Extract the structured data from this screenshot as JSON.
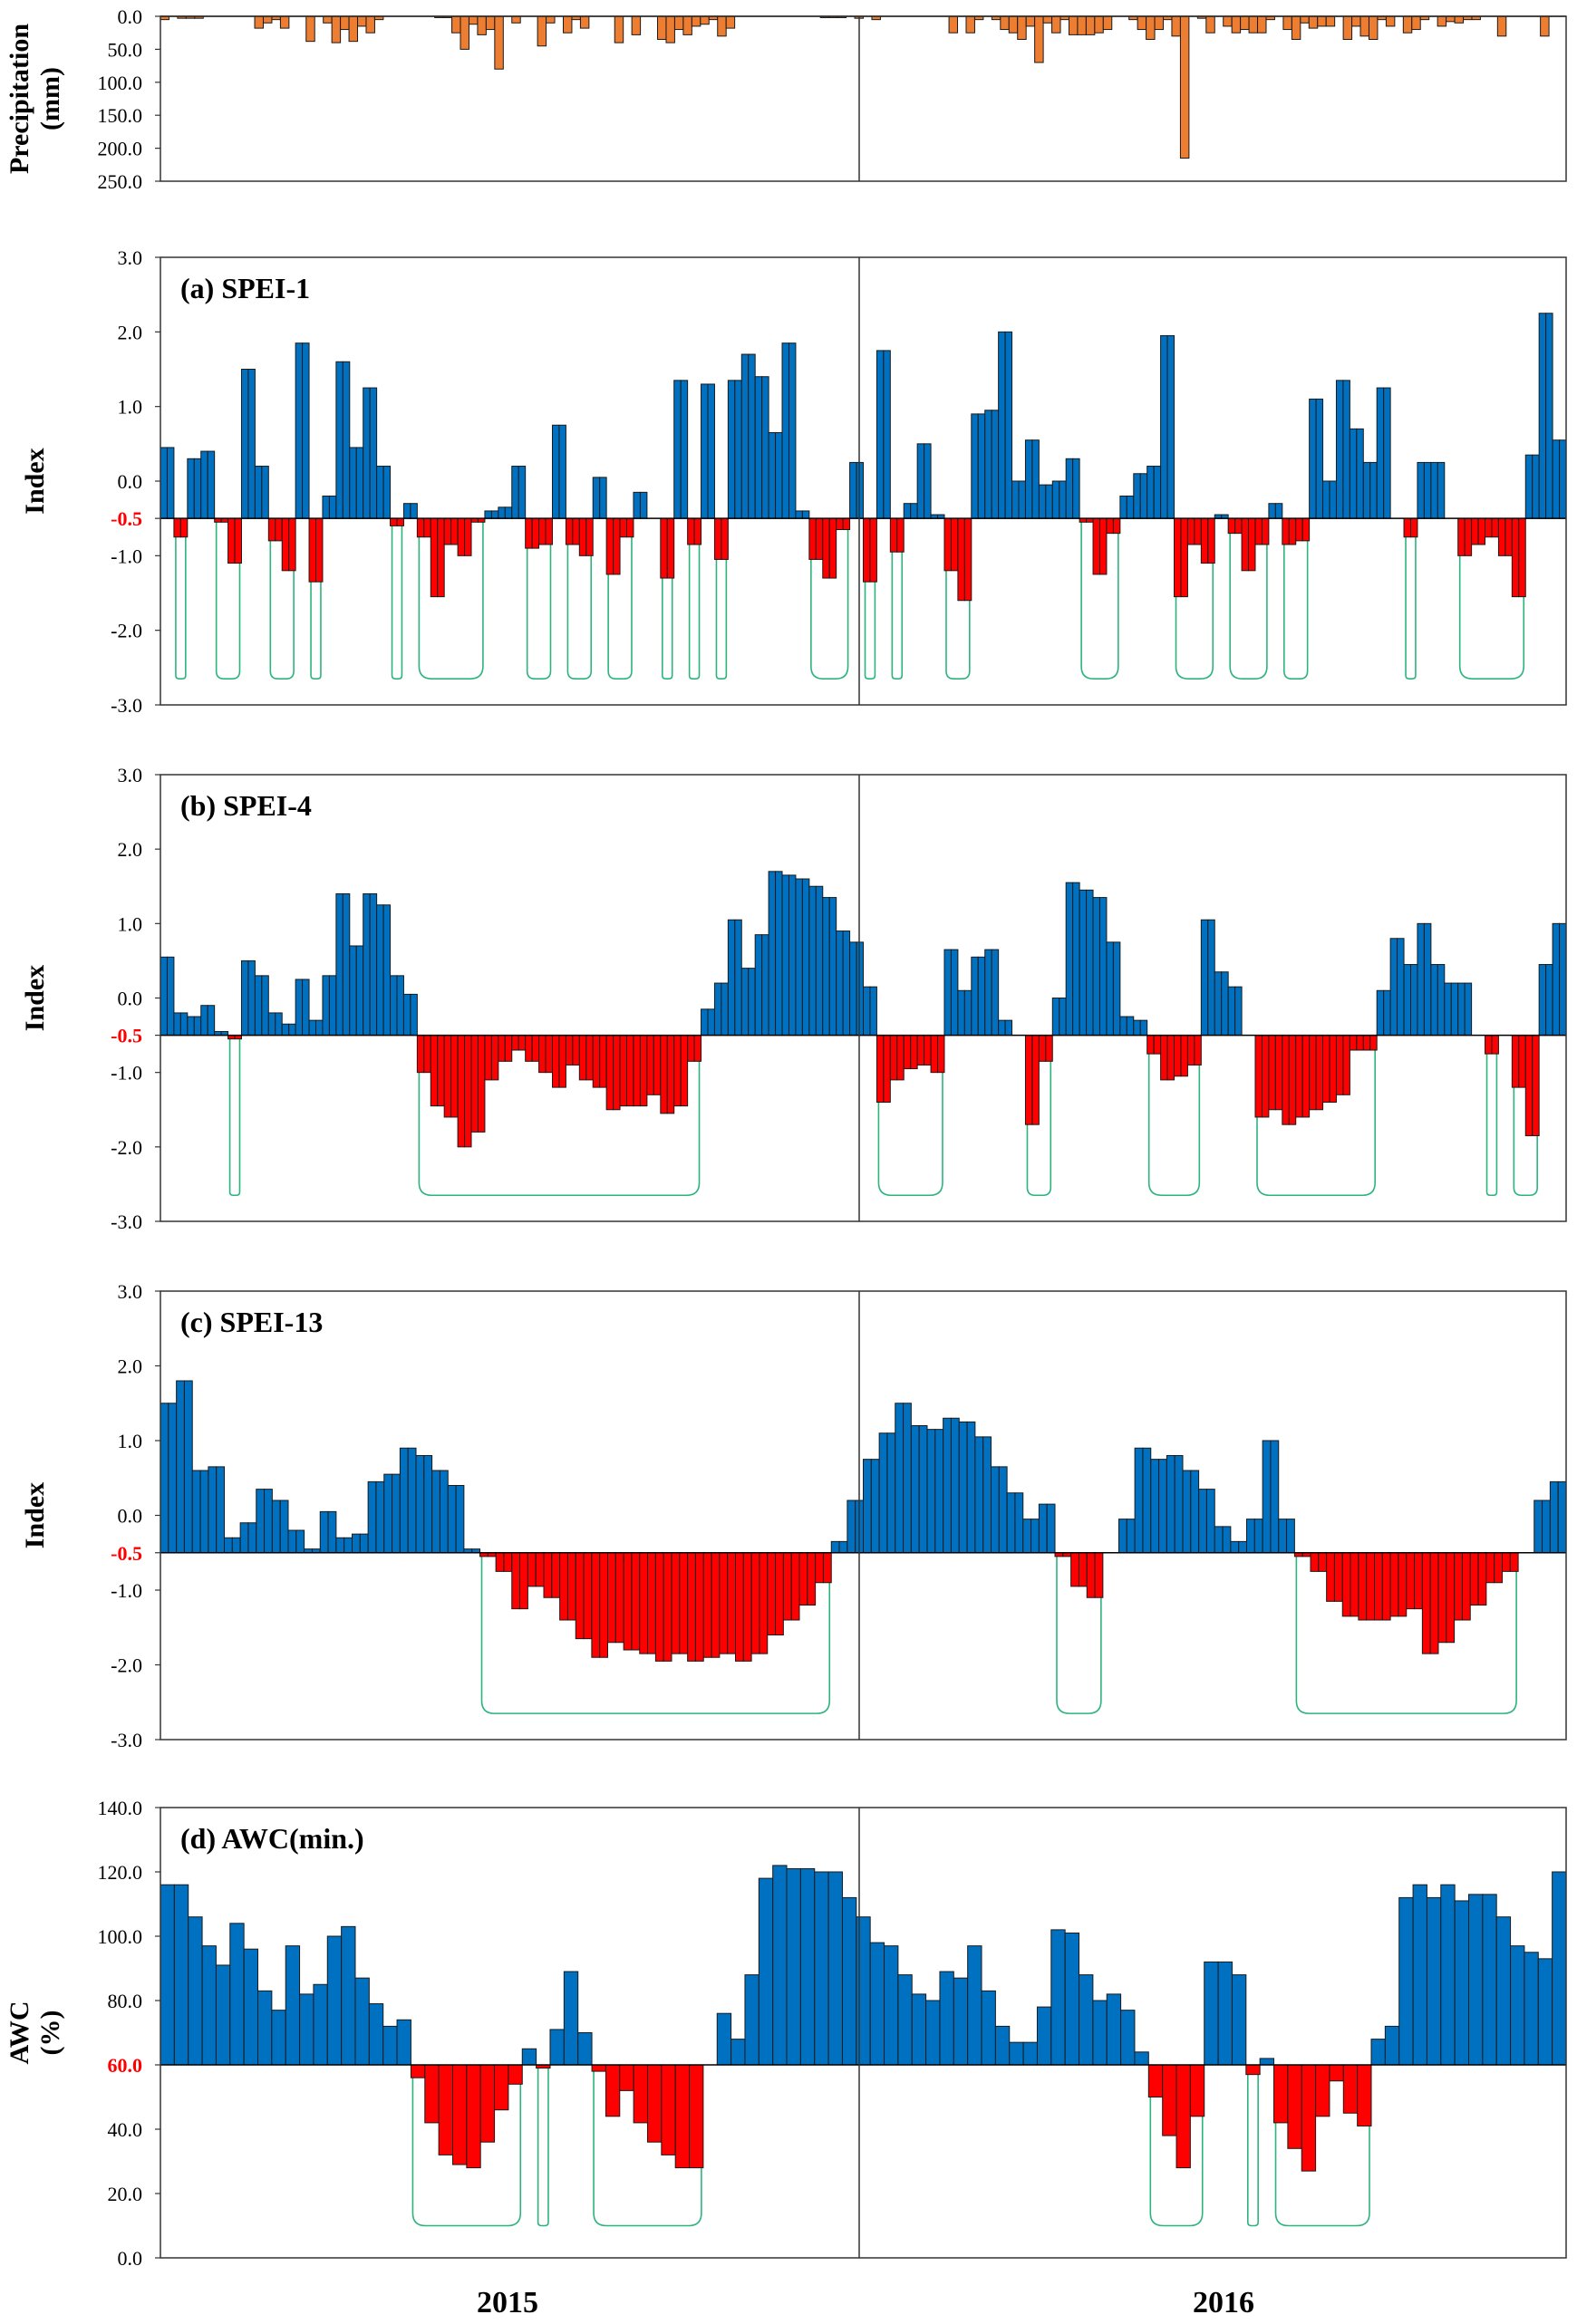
{
  "years": [
    "2015",
    "2016"
  ],
  "colors": {
    "precip": "#ED7D31",
    "positive": "#0070C0",
    "negative": "#FF0000",
    "drought_line": "#2DB47E",
    "threshold_text": "#FF0000"
  },
  "chart_data": [
    {
      "id": "precip",
      "type": "bar",
      "title": "",
      "ylabel_lines": [
        "Precipitation",
        "(mm)"
      ],
      "inverted": true,
      "ylim": [
        0,
        250
      ],
      "yticks": [
        "0.0",
        "50.0",
        "100.0",
        "150.0",
        "200.0",
        "250.0"
      ],
      "values": [
        5,
        0,
        3,
        3,
        3,
        0,
        0,
        0,
        0,
        0,
        0,
        18,
        10,
        5,
        18,
        0,
        0,
        38,
        0,
        10,
        40,
        20,
        38,
        15,
        25,
        5,
        0,
        0,
        0,
        0,
        0,
        0,
        2,
        2,
        25,
        50,
        12,
        28,
        20,
        80,
        0,
        10,
        0,
        0,
        45,
        10,
        0,
        25,
        5,
        18,
        0,
        0,
        0,
        40,
        0,
        28,
        0,
        0,
        35,
        40,
        20,
        28,
        15,
        12,
        5,
        30,
        18,
        0,
        0,
        0,
        0,
        0,
        0,
        0,
        0,
        0,
        0,
        2,
        2,
        2,
        0,
        3,
        0,
        5,
        0,
        0,
        0,
        0,
        0,
        0,
        0,
        0,
        25,
        0,
        25,
        5,
        0,
        5,
        20,
        25,
        35,
        15,
        70,
        10,
        25,
        5,
        28,
        28,
        28,
        25,
        20,
        0,
        0,
        5,
        20,
        35,
        20,
        5,
        30,
        215,
        0,
        3,
        25,
        0,
        15,
        25,
        20,
        25,
        25,
        5,
        0,
        20,
        35,
        10,
        18,
        15,
        15,
        0,
        35,
        15,
        30,
        35,
        5,
        15,
        0,
        25,
        20,
        5,
        0,
        15,
        8,
        10,
        5,
        5,
        0,
        0,
        30,
        0,
        0,
        0,
        0,
        30,
        0,
        0
      ]
    },
    {
      "id": "spei1",
      "type": "bar",
      "title": "(a) SPEI-1",
      "ylabel_lines": [
        "Index"
      ],
      "ylim": [
        -3,
        3
      ],
      "yticks": [
        "3.0",
        "2.0",
        "1.0",
        "0.0",
        "-0.5",
        "-1.0",
        "-2.0",
        "-3.0"
      ],
      "baseline": -0.5,
      "baseline_label": "-0.5",
      "drought_level": -2.65,
      "values": [
        0.45,
        0.45,
        -0.75,
        -0.75,
        0.3,
        0.3,
        0.4,
        0.4,
        -0.55,
        -0.55,
        -1.1,
        -1.1,
        1.5,
        1.5,
        0.2,
        0.2,
        -0.8,
        -0.8,
        -1.2,
        -1.2,
        1.85,
        1.85,
        -1.35,
        -1.35,
        -0.2,
        -0.2,
        1.6,
        1.6,
        0.45,
        0.45,
        1.25,
        1.25,
        0.2,
        0.2,
        -0.6,
        -0.6,
        -0.3,
        -0.3,
        -0.75,
        -0.75,
        -1.55,
        -1.55,
        -0.85,
        -0.85,
        -1.0,
        -1.0,
        -0.55,
        -0.55,
        -0.4,
        -0.4,
        -0.35,
        -0.35,
        0.2,
        0.2,
        -0.9,
        -0.9,
        -0.85,
        -0.85,
        0.75,
        0.75,
        -0.85,
        -0.85,
        -1.0,
        -1.0,
        0.05,
        0.05,
        -1.25,
        -1.25,
        -0.75,
        -0.75,
        -0.15,
        -0.15,
        -0.5,
        -0.5,
        -1.3,
        -1.3,
        1.35,
        1.35,
        -0.85,
        -0.85,
        1.3,
        1.3,
        -1.05,
        -1.05,
        1.35,
        1.35,
        1.7,
        1.7,
        1.4,
        1.4,
        0.65,
        0.65,
        1.85,
        1.85,
        -0.4,
        -0.4,
        -1.05,
        -1.05,
        -1.3,
        -1.3,
        -0.65,
        -0.65,
        0.25,
        0.25,
        -1.35,
        -1.35,
        1.75,
        1.75,
        -0.95,
        -0.95,
        -0.3,
        -0.3,
        0.5,
        0.5,
        -0.45,
        -0.45,
        -1.2,
        -1.2,
        -1.6,
        -1.6,
        0.9,
        0.9,
        0.95,
        0.95,
        2.0,
        2.0,
        0.0,
        0.0,
        0.55,
        0.55,
        -0.05,
        -0.05,
        0.0,
        0.0,
        0.3,
        0.3,
        -0.55,
        -0.55,
        -1.25,
        -1.25,
        -0.7,
        -0.7,
        -0.2,
        -0.2,
        0.1,
        0.1,
        0.2,
        0.2,
        1.95,
        1.95,
        -1.55,
        -1.55,
        -0.85,
        -0.85,
        -1.1,
        -1.1,
        -0.45,
        -0.45,
        -0.7,
        -0.7,
        -1.2,
        -1.2,
        -0.85,
        -0.85,
        -0.3,
        -0.3,
        -0.85,
        -0.85,
        -0.8,
        -0.8,
        1.1,
        1.1,
        0.0,
        0.0,
        1.35,
        1.35,
        0.7,
        0.7,
        0.25,
        0.25,
        1.25,
        1.25,
        -0.5,
        -0.5,
        -0.75,
        -0.75,
        0.25,
        0.25,
        0.25,
        0.25,
        -0.5,
        -0.5,
        -1.0,
        -1.0,
        -0.85,
        -0.85,
        -0.75,
        -0.75,
        -1.0,
        -1.0,
        -1.55,
        -1.55,
        0.35,
        0.35,
        2.25,
        2.25,
        0.55,
        0.55
      ]
    },
    {
      "id": "spei4",
      "type": "bar",
      "title": "(b) SPEI-4",
      "ylabel_lines": [
        "Index"
      ],
      "ylim": [
        -3,
        3
      ],
      "yticks": [
        "3.0",
        "2.0",
        "1.0",
        "0.0",
        "-0.5",
        "-1.0",
        "-2.0",
        "-3.0"
      ],
      "baseline": -0.5,
      "baseline_label": "-0.5",
      "drought_level": -2.65,
      "values": [
        0.55,
        0.55,
        -0.2,
        -0.2,
        -0.25,
        -0.25,
        -0.1,
        -0.1,
        -0.45,
        -0.45,
        -0.55,
        -0.55,
        0.5,
        0.5,
        0.3,
        0.3,
        -0.2,
        -0.2,
        -0.35,
        -0.35,
        0.25,
        0.25,
        -0.3,
        -0.3,
        0.3,
        0.3,
        1.4,
        1.4,
        0.7,
        0.7,
        1.4,
        1.4,
        1.25,
        1.25,
        0.3,
        0.3,
        0.05,
        0.05,
        -1.0,
        -1.0,
        -1.45,
        -1.45,
        -1.6,
        -1.6,
        -2.0,
        -2.0,
        -1.8,
        -1.8,
        -1.1,
        -1.1,
        -0.85,
        -0.85,
        -0.7,
        -0.7,
        -0.85,
        -0.85,
        -1.0,
        -1.0,
        -1.2,
        -1.2,
        -0.9,
        -0.9,
        -1.1,
        -1.1,
        -1.2,
        -1.2,
        -1.5,
        -1.5,
        -1.45,
        -1.45,
        -1.45,
        -1.45,
        -1.3,
        -1.3,
        -1.55,
        -1.55,
        -1.45,
        -1.45,
        -0.85,
        -0.85,
        -0.15,
        -0.15,
        0.2,
        0.2,
        1.05,
        1.05,
        0.4,
        0.4,
        0.85,
        0.85,
        1.7,
        1.7,
        1.65,
        1.65,
        1.6,
        1.6,
        1.5,
        1.5,
        1.35,
        1.35,
        0.9,
        0.9,
        0.75,
        0.75,
        0.15,
        0.15,
        -1.4,
        -1.4,
        -1.1,
        -1.1,
        -0.95,
        -0.95,
        -0.9,
        -0.9,
        -1.0,
        -1.0,
        0.65,
        0.65,
        0.1,
        0.1,
        0.55,
        0.55,
        0.65,
        0.65,
        -0.3,
        -0.3,
        -0.5,
        -0.5,
        -1.7,
        -1.7,
        -0.85,
        -0.85,
        0.0,
        0.0,
        1.55,
        1.55,
        1.45,
        1.45,
        1.35,
        1.35,
        0.75,
        0.75,
        -0.25,
        -0.25,
        -0.3,
        -0.3,
        -0.75,
        -0.75,
        -1.1,
        -1.1,
        -1.05,
        -1.05,
        -0.9,
        -0.9,
        1.05,
        1.05,
        0.35,
        0.35,
        0.15,
        0.15,
        -0.5,
        -0.5,
        -1.6,
        -1.6,
        -1.5,
        -1.5,
        -1.7,
        -1.7,
        -1.6,
        -1.6,
        -1.5,
        -1.5,
        -1.4,
        -1.4,
        -1.3,
        -1.3,
        -0.7,
        -0.7,
        -0.7,
        -0.7,
        0.1,
        0.1,
        0.8,
        0.8,
        0.45,
        0.45,
        1.0,
        1.0,
        0.45,
        0.45,
        0.2,
        0.2,
        0.2,
        0.2,
        -0.5,
        -0.5,
        -0.75,
        -0.75,
        -0.5,
        -0.5,
        -1.2,
        -1.2,
        -1.85,
        -1.85,
        0.45,
        0.45,
        1.0,
        1.0
      ]
    },
    {
      "id": "spei13",
      "type": "bar",
      "title": "(c) SPEI-13",
      "ylabel_lines": [
        "Index"
      ],
      "ylim": [
        -3,
        3
      ],
      "yticks": [
        "3.0",
        "2.0",
        "1.0",
        "0.0",
        "-0.5",
        "-1.0",
        "-2.0",
        "-3.0"
      ],
      "baseline": -0.5,
      "baseline_label": "-0.5",
      "drought_level": -2.65,
      "values": [
        1.5,
        1.5,
        1.8,
        1.8,
        0.6,
        0.6,
        0.65,
        0.65,
        -0.3,
        -0.3,
        -0.1,
        -0.1,
        0.35,
        0.35,
        0.2,
        0.2,
        -0.2,
        -0.2,
        -0.45,
        -0.45,
        0.05,
        0.05,
        -0.3,
        -0.3,
        -0.25,
        -0.25,
        0.45,
        0.45,
        0.55,
        0.55,
        0.9,
        0.9,
        0.8,
        0.8,
        0.6,
        0.6,
        0.4,
        0.4,
        -0.45,
        -0.45,
        -0.55,
        -0.55,
        -0.75,
        -0.75,
        -1.25,
        -1.25,
        -0.95,
        -0.95,
        -1.1,
        -1.1,
        -1.4,
        -1.4,
        -1.65,
        -1.65,
        -1.9,
        -1.9,
        -1.7,
        -1.7,
        -1.8,
        -1.8,
        -1.85,
        -1.85,
        -1.95,
        -1.95,
        -1.85,
        -1.85,
        -1.95,
        -1.95,
        -1.9,
        -1.9,
        -1.85,
        -1.85,
        -1.95,
        -1.95,
        -1.85,
        -1.85,
        -1.6,
        -1.6,
        -1.4,
        -1.4,
        -1.2,
        -1.2,
        -0.9,
        -0.9,
        -0.35,
        -0.35,
        0.2,
        0.2,
        0.75,
        0.75,
        1.1,
        1.1,
        1.5,
        1.5,
        1.2,
        1.2,
        1.15,
        1.15,
        1.3,
        1.3,
        1.25,
        1.25,
        1.05,
        1.05,
        0.65,
        0.65,
        0.3,
        0.3,
        -0.05,
        -0.05,
        0.15,
        0.15,
        -0.55,
        -0.55,
        -0.95,
        -0.95,
        -1.1,
        -1.1,
        -0.5,
        -0.5,
        -0.05,
        -0.05,
        0.9,
        0.9,
        0.75,
        0.75,
        0.8,
        0.8,
        0.6,
        0.6,
        0.35,
        0.35,
        -0.15,
        -0.15,
        -0.35,
        -0.35,
        -0.05,
        -0.05,
        1.0,
        1.0,
        -0.05,
        -0.05,
        -0.55,
        -0.55,
        -0.75,
        -0.75,
        -1.15,
        -1.15,
        -1.35,
        -1.35,
        -1.4,
        -1.4,
        -1.4,
        -1.4,
        -1.35,
        -1.35,
        -1.25,
        -1.25,
        -1.85,
        -1.85,
        -1.7,
        -1.7,
        -1.4,
        -1.4,
        -1.2,
        -1.2,
        -0.9,
        -0.9,
        -0.75,
        -0.75,
        -0.5,
        -0.5,
        0.2,
        0.2,
        0.45,
        0.45
      ]
    },
    {
      "id": "awc",
      "type": "bar",
      "title": "(d) AWC(min.)",
      "ylabel_lines": [
        "AWC",
        "(%)"
      ],
      "ylim": [
        0,
        140
      ],
      "yticks": [
        "140.0",
        "120.0",
        "100.0",
        "80.0",
        "60.0",
        "40.0",
        "20.0",
        "0.0"
      ],
      "baseline": 60,
      "baseline_label": "60.0",
      "drought_level": 10,
      "values": [
        116,
        116,
        106,
        97,
        91,
        104,
        96,
        83,
        77,
        97,
        82,
        85,
        100,
        103,
        87,
        79,
        72,
        74,
        56,
        42,
        32,
        29,
        28,
        36,
        46,
        54,
        65,
        59,
        71,
        89,
        70,
        58,
        44,
        52,
        42,
        36,
        32,
        28,
        28,
        60,
        76,
        68,
        88,
        118,
        122,
        121,
        121,
        120,
        120,
        112,
        106,
        98,
        97,
        88,
        82,
        80,
        89,
        87,
        97,
        83,
        72,
        67,
        67,
        78,
        102,
        101,
        88,
        80,
        82,
        77,
        64,
        50,
        38,
        28,
        44,
        92,
        92,
        88,
        57,
        62,
        42,
        34,
        27,
        44,
        55,
        45,
        41,
        68,
        72,
        112,
        116,
        112,
        116,
        111,
        113,
        113,
        106,
        97,
        95,
        93,
        120
      ]
    }
  ]
}
